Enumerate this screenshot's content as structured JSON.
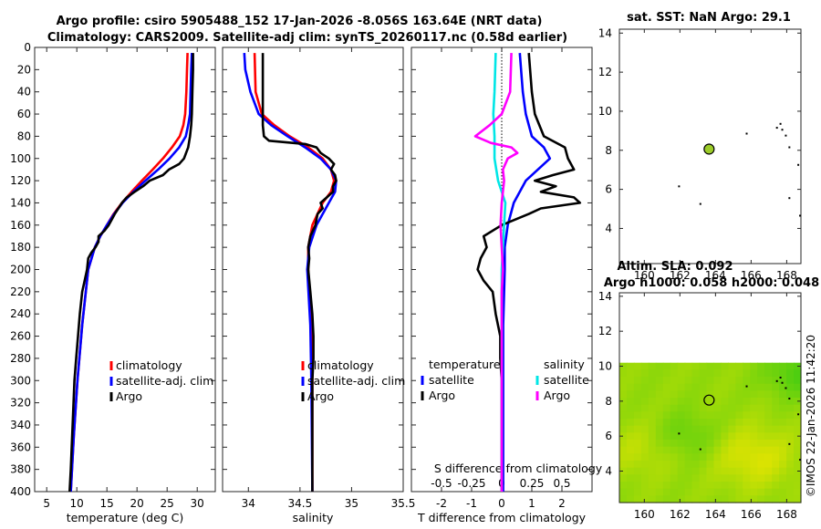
{
  "header": {
    "title_line1": "Argo profile: csiro 5905488_152 17-Jan-2026 -8.056S 163.64E (NRT data)",
    "title_line2": "Climatology: CARS2009. Satellite-adj clim: synTS_20260117.nc (0.58d earlier)"
  },
  "watermark": "©IMOS 22-Jan-2026 11:42:20",
  "colors": {
    "climatology": "#ff0000",
    "satellite": "#0000ff",
    "argo": "#000000",
    "sat_salinity": "#00e6e6",
    "argo_salinity": "#ff00ff"
  },
  "chart_data": [
    {
      "id": "temperature",
      "type": "line",
      "xlabel": "temperature (deg C)",
      "ylabel": "",
      "xlim": [
        3,
        33
      ],
      "ylim": [
        400,
        0
      ],
      "xticks": [
        "5",
        "10",
        "15",
        "20",
        "25",
        "30"
      ],
      "yticks": [
        "0",
        "20",
        "40",
        "60",
        "80",
        "100",
        "120",
        "140",
        "160",
        "180",
        "200",
        "220",
        "240",
        "260",
        "280",
        "300",
        "320",
        "340",
        "360",
        "380",
        "400"
      ],
      "legend": [
        "climatology",
        "satellite-adj. clim",
        "Argo"
      ],
      "series": [
        {
          "name": "climatology",
          "color": "#ff0000",
          "depth": [
            5,
            20,
            40,
            60,
            70,
            80,
            90,
            100,
            110,
            120,
            130,
            140,
            150,
            160,
            170,
            180,
            200,
            250,
            300,
            350,
            400
          ],
          "values": [
            28.4,
            28.3,
            28.2,
            28.0,
            27.7,
            27.1,
            25.8,
            24.3,
            22.6,
            20.8,
            19.1,
            17.5,
            16.1,
            15.0,
            13.9,
            13.0,
            11.9,
            10.9,
            10.1,
            9.5,
            9.0
          ]
        },
        {
          "name": "satellite-adj. clim",
          "color": "#0000ff",
          "depth": [
            5,
            20,
            40,
            60,
            70,
            80,
            90,
            100,
            110,
            120,
            130,
            140,
            150,
            160,
            170,
            180,
            200,
            250,
            300,
            350,
            400
          ],
          "values": [
            29.1,
            29.0,
            28.9,
            28.8,
            28.5,
            28.1,
            27.0,
            25.4,
            23.5,
            21.4,
            19.4,
            17.6,
            16.2,
            15.0,
            13.9,
            13.0,
            11.9,
            10.9,
            10.1,
            9.5,
            9.0
          ]
        },
        {
          "name": "Argo",
          "color": "#000000",
          "depth": [
            5,
            20,
            40,
            60,
            70,
            80,
            90,
            100,
            105,
            110,
            115,
            120,
            125,
            130,
            135,
            140,
            150,
            155,
            160,
            165,
            170,
            175,
            180,
            185,
            190,
            200,
            210,
            220,
            240,
            260,
            280,
            300,
            340,
            380,
            400
          ],
          "values": [
            29.3,
            29.3,
            29.2,
            29.1,
            29.0,
            28.8,
            28.5,
            27.8,
            27.0,
            25.3,
            24.3,
            22.1,
            21.0,
            19.6,
            18.3,
            17.5,
            16.3,
            15.8,
            15.3,
            14.6,
            13.6,
            13.6,
            13.1,
            12.4,
            11.9,
            11.7,
            11.3,
            10.9,
            10.5,
            10.2,
            9.9,
            9.6,
            9.3,
            9.0,
            8.8
          ]
        }
      ]
    },
    {
      "id": "salinity",
      "type": "line",
      "xlabel": "salinity",
      "xlim": [
        33.75,
        35.5
      ],
      "ylim": [
        400,
        0
      ],
      "xticks": [
        "34",
        "34.5",
        "35",
        "35.5"
      ],
      "legend": [
        "climatology",
        "satellite-adj. clim",
        "Argo"
      ],
      "series": [
        {
          "name": "climatology",
          "color": "#ff0000",
          "depth": [
            5,
            40,
            60,
            70,
            80,
            90,
            100,
            110,
            120,
            130,
            140,
            160,
            180,
            200,
            250,
            300,
            400
          ],
          "values": [
            34.06,
            34.07,
            34.13,
            34.25,
            34.4,
            34.58,
            34.72,
            34.8,
            34.83,
            34.8,
            34.72,
            34.62,
            34.58,
            34.58,
            34.61,
            34.62,
            34.62
          ]
        },
        {
          "name": "satellite-adj. clim",
          "color": "#0000ff",
          "depth": [
            5,
            20,
            40,
            60,
            70,
            80,
            90,
            100,
            110,
            120,
            130,
            140,
            160,
            180,
            200,
            250,
            300,
            400
          ],
          "values": [
            33.96,
            33.97,
            34.02,
            34.1,
            34.22,
            34.38,
            34.55,
            34.7,
            34.8,
            34.85,
            34.84,
            34.78,
            34.66,
            34.59,
            34.57,
            34.6,
            34.61,
            34.62
          ]
        },
        {
          "name": "Argo",
          "color": "#000000",
          "depth": [
            5,
            20,
            40,
            60,
            70,
            80,
            84,
            87,
            90,
            95,
            100,
            105,
            110,
            115,
            120,
            125,
            130,
            135,
            140,
            145,
            150,
            160,
            170,
            180,
            190,
            200,
            220,
            240,
            260,
            280,
            300,
            350,
            400
          ],
          "values": [
            34.14,
            34.14,
            34.14,
            34.14,
            34.14,
            34.15,
            34.2,
            34.55,
            34.66,
            34.7,
            34.78,
            34.83,
            34.8,
            34.84,
            34.85,
            34.82,
            34.82,
            34.76,
            34.7,
            34.72,
            34.67,
            34.65,
            34.6,
            34.58,
            34.59,
            34.58,
            34.6,
            34.62,
            34.63,
            34.63,
            34.62,
            34.62,
            34.62
          ]
        }
      ]
    },
    {
      "id": "difference",
      "type": "line",
      "xlabel": "T difference from climatology",
      "xlabel_top": "S difference from climatology",
      "xlim": [
        -3,
        3
      ],
      "ylim": [
        400,
        0
      ],
      "xticks": [
        "-2",
        "-1",
        "0",
        "1",
        "2"
      ],
      "xticks_top": [
        "-0.5",
        "-0.25",
        "0",
        "0.25",
        "0.5"
      ],
      "legend_temperature_header": "temperature",
      "legend_salinity_header": "salinity",
      "legend": [
        "satellite",
        "Argo",
        "satellite",
        "Argo"
      ],
      "series": [
        {
          "name": "satellite (temperature)",
          "color": "#0000ff",
          "depth": [
            5,
            40,
            60,
            80,
            90,
            100,
            110,
            120,
            140,
            160,
            180,
            200,
            250,
            300,
            400
          ],
          "values": [
            0.6,
            0.7,
            0.8,
            1.0,
            1.4,
            1.6,
            1.2,
            0.8,
            0.4,
            0.2,
            0.1,
            0.1,
            0.05,
            0.05,
            0.05
          ]
        },
        {
          "name": "Argo (temperature)",
          "color": "#000000",
          "depth": [
            5,
            40,
            60,
            80,
            90,
            100,
            110,
            115,
            120,
            125,
            130,
            135,
            140,
            145,
            150,
            160,
            170,
            180,
            190,
            200,
            210,
            220,
            240,
            260,
            280,
            300,
            340,
            400
          ],
          "values": [
            0.9,
            1.0,
            1.1,
            1.4,
            2.1,
            2.2,
            2.4,
            1.7,
            1.1,
            1.8,
            1.3,
            2.4,
            2.6,
            1.3,
            0.9,
            0.0,
            -0.6,
            -0.5,
            -0.7,
            -0.8,
            -0.6,
            -0.3,
            -0.2,
            -0.05,
            -0.05,
            0.0,
            0.0,
            0.0
          ]
        },
        {
          "name": "satellite (salinity)",
          "color": "#00e6e6",
          "depth": [
            5,
            40,
            60,
            80,
            100,
            120,
            140,
            160,
            180,
            200,
            250,
            300,
            400
          ],
          "values": [
            -0.05,
            -0.06,
            -0.07,
            -0.06,
            -0.06,
            -0.03,
            0.03,
            0.02,
            0.01,
            0.0,
            0.0,
            0.0,
            0.0
          ]
        },
        {
          "name": "Argo (salinity)",
          "color": "#ff00ff",
          "depth": [
            5,
            40,
            60,
            70,
            80,
            86,
            90,
            95,
            100,
            110,
            120,
            140,
            160,
            180,
            200,
            220,
            250,
            300,
            350,
            400
          ],
          "values": [
            0.08,
            0.07,
            0.0,
            -0.1,
            -0.22,
            -0.09,
            0.08,
            0.13,
            0.05,
            0.01,
            0.02,
            0.0,
            -0.01,
            0.0,
            0.01,
            0.0,
            0.0,
            0.0,
            0.0,
            0.0
          ]
        }
      ]
    },
    {
      "id": "sst_map",
      "type": "scatter",
      "title": "sat. SST: NaN Argo: 29.1",
      "xlim": [
        158.6,
        168.8
      ],
      "ylim": [
        2.2,
        14.2
      ],
      "xticks": [
        "160",
        "162",
        "164",
        "166",
        "168"
      ],
      "yticks": [
        "4",
        "6",
        "8",
        "10",
        "12",
        "14"
      ],
      "point": {
        "lon": 163.64,
        "lat": 8.06
      },
      "point_color": "#9ccc29"
    },
    {
      "id": "sla_map",
      "type": "heatmap",
      "title": "Altim. SLA: 0.092",
      "subtitle": "Argo h1000: 0.058 h2000: 0.048",
      "xlim": [
        158.6,
        168.8
      ],
      "ylim": [
        2.2,
        14.2
      ],
      "xticks": [
        "160",
        "162",
        "164",
        "166",
        "168"
      ],
      "yticks": [
        "4",
        "6",
        "8",
        "10",
        "12",
        "14"
      ],
      "field_extent": {
        "lon": [
          158.6,
          168.8
        ],
        "lat": [
          2.2,
          10.2
        ]
      },
      "point": {
        "lon": 163.64,
        "lat": 8.06
      }
    }
  ]
}
